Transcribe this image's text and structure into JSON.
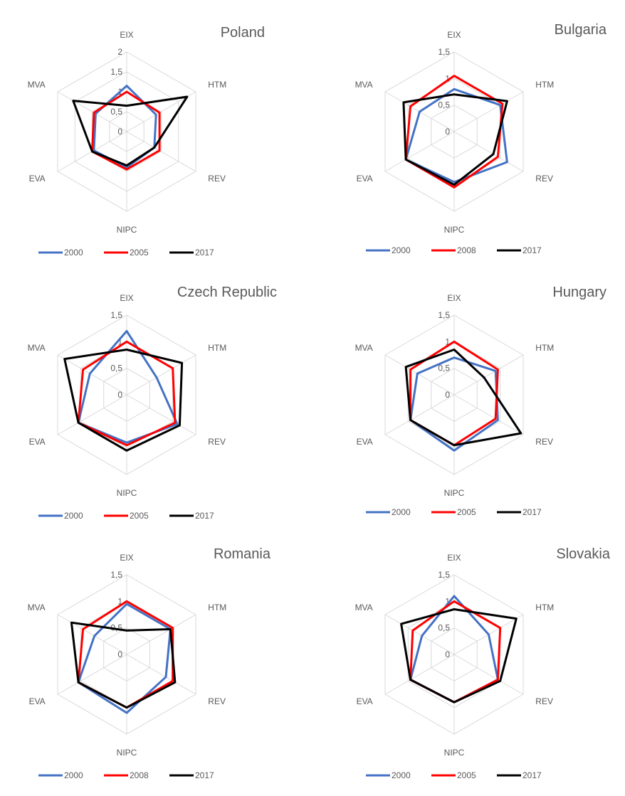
{
  "chart_data": [
    {
      "type": "radar",
      "title": "Poland",
      "axes": [
        "EIX",
        "HTM",
        "REV",
        "NIPC",
        "EVA",
        "MVA"
      ],
      "ticks": [
        "0",
        "0,5",
        "1",
        "1,5",
        "2"
      ],
      "rmax": 2,
      "grid": true,
      "legend": "bottom",
      "series": [
        {
          "name": "2000",
          "color": "#4472c4",
          "values": [
            1.15,
            0.85,
            0.8,
            0.9,
            0.95,
            0.9
          ]
        },
        {
          "name": "2005",
          "color": "#ff0000",
          "values": [
            1.0,
            0.95,
            0.95,
            0.95,
            1.0,
            0.95
          ]
        },
        {
          "name": "2017",
          "color": "#000000",
          "values": [
            0.65,
            1.75,
            0.8,
            0.85,
            1.0,
            1.55
          ]
        }
      ]
    },
    {
      "type": "radar",
      "title": "Bulgaria",
      "axes": [
        "EIX",
        "HTM",
        "REV",
        "NIPC",
        "EVA",
        "MVA"
      ],
      "ticks": [
        "0",
        "0,5",
        "1",
        "1,5"
      ],
      "rmax": 1.5,
      "grid": true,
      "legend": "bottom",
      "series": [
        {
          "name": "2000",
          "color": "#4472c4",
          "values": [
            0.8,
            1.0,
            1.15,
            0.95,
            1.05,
            0.75
          ]
        },
        {
          "name": "2008",
          "color": "#ff0000",
          "values": [
            1.05,
            1.05,
            0.95,
            1.05,
            1.05,
            0.95
          ]
        },
        {
          "name": "2017",
          "color": "#000000",
          "values": [
            0.7,
            1.15,
            0.85,
            1.0,
            1.05,
            1.1
          ]
        }
      ]
    },
    {
      "type": "radar",
      "title": "Czech Republic",
      "axes": [
        "EIX",
        "HTM",
        "REV",
        "NIPC",
        "EVA",
        "MVA"
      ],
      "ticks": [
        "0",
        "0,5",
        "1",
        "1,5"
      ],
      "rmax": 1.5,
      "grid": true,
      "legend": "bottom",
      "series": [
        {
          "name": "2000",
          "color": "#4472c4",
          "values": [
            1.2,
            0.65,
            1.1,
            0.9,
            1.05,
            0.8
          ]
        },
        {
          "name": "2005",
          "color": "#ff0000",
          "values": [
            1.0,
            1.0,
            1.05,
            0.95,
            1.05,
            0.95
          ]
        },
        {
          "name": "2017",
          "color": "#000000",
          "values": [
            0.85,
            1.2,
            1.15,
            1.05,
            1.05,
            1.35
          ]
        }
      ]
    },
    {
      "type": "radar",
      "title": "Hungary",
      "axes": [
        "EIX",
        "HTM",
        "REV",
        "NIPC",
        "EVA",
        "MVA"
      ],
      "ticks": [
        "0",
        "0,5",
        "1",
        "1,5"
      ],
      "rmax": 1.5,
      "grid": true,
      "legend": "bottom",
      "series": [
        {
          "name": "2000",
          "color": "#4472c4",
          "values": [
            0.7,
            0.9,
            0.95,
            1.05,
            0.95,
            0.8
          ]
        },
        {
          "name": "2005",
          "color": "#ff0000",
          "values": [
            1.0,
            0.95,
            0.9,
            0.95,
            0.95,
            0.95
          ]
        },
        {
          "name": "2017",
          "color": "#000000",
          "values": [
            0.85,
            0.65,
            1.45,
            0.95,
            0.95,
            1.05
          ]
        }
      ]
    },
    {
      "type": "radar",
      "title": "Romania",
      "axes": [
        "EIX",
        "HTM",
        "REV",
        "NIPC",
        "EVA",
        "MVA"
      ],
      "ticks": [
        "0",
        "0,5",
        "1",
        "1,5"
      ],
      "rmax": 1.5,
      "grid": true,
      "legend": "bottom",
      "series": [
        {
          "name": "2000",
          "color": "#4472c4",
          "values": [
            0.95,
            0.95,
            0.85,
            1.1,
            1.05,
            0.7
          ]
        },
        {
          "name": "2008",
          "color": "#ff0000",
          "values": [
            1.0,
            1.0,
            1.0,
            1.0,
            1.05,
            0.95
          ]
        },
        {
          "name": "2017",
          "color": "#000000",
          "values": [
            0.45,
            0.95,
            1.05,
            1.0,
            1.05,
            1.2
          ]
        }
      ]
    },
    {
      "type": "radar",
      "title": "Slovakia",
      "axes": [
        "EIX",
        "HTM",
        "REV",
        "NIPC",
        "EVA",
        "MVA"
      ],
      "ticks": [
        "0",
        "0,5",
        "1",
        "1,5"
      ],
      "rmax": 1.5,
      "grid": true,
      "legend": "bottom",
      "series": [
        {
          "name": "2000",
          "color": "#4472c4",
          "values": [
            1.1,
            0.75,
            0.95,
            0.9,
            0.95,
            0.7
          ]
        },
        {
          "name": "2005",
          "color": "#ff0000",
          "values": [
            1.0,
            1.0,
            0.95,
            0.9,
            0.95,
            0.9
          ]
        },
        {
          "name": "2017",
          "color": "#000000",
          "values": [
            0.85,
            1.35,
            1.0,
            0.9,
            0.95,
            1.15
          ]
        }
      ]
    }
  ]
}
